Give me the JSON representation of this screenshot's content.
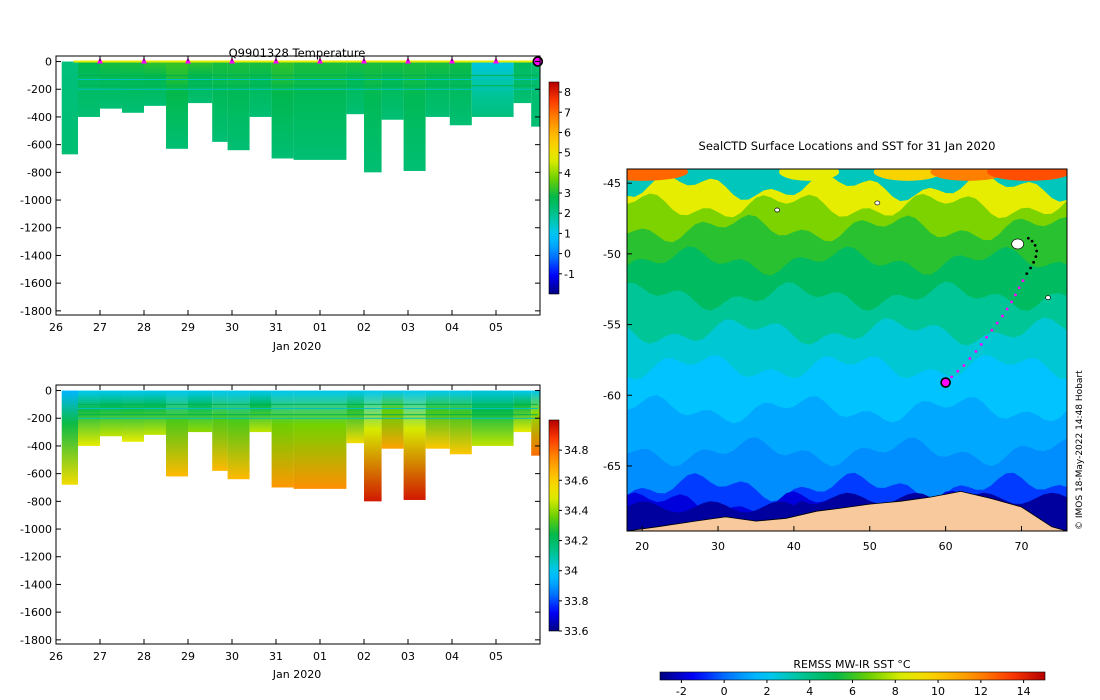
{
  "chart_data": [
    {
      "type": "heatmap",
      "title": "Q9901328  Temperature",
      "xlabel": "Jan 2020",
      "ylabel": "",
      "x_ticks": [
        "26",
        "27",
        "28",
        "29",
        "30",
        "31",
        "01",
        "02",
        "03",
        "04",
        "05"
      ],
      "y_ticks": [
        "0",
        "-200",
        "-400",
        "-600",
        "-800",
        "-1000",
        "-1200",
        "-1400",
        "-1600",
        "-1800"
      ],
      "ylim": [
        -1830,
        40
      ],
      "colorbar": {
        "min": -2,
        "max": 8.5,
        "ticks": [
          "-1",
          "0",
          "1",
          "2",
          "3",
          "4",
          "5",
          "6",
          "7",
          "8"
        ]
      },
      "surface_marker_positions_days": [
        1,
        2,
        3,
        4,
        5,
        6,
        7,
        8,
        9,
        10,
        10.95
      ],
      "profiles": [
        {
          "x0": 0.13,
          "x1": 0.5,
          "bottom": -670,
          "surface": 2.2,
          "deep": 2.3
        },
        {
          "x0": 0.5,
          "x1": 1.0,
          "bottom": -400,
          "surface": 2.8,
          "deep": 2.3
        },
        {
          "x0": 1.0,
          "x1": 1.5,
          "bottom": -340,
          "surface": 3.0,
          "deep": 2.3
        },
        {
          "x0": 1.5,
          "x1": 2.0,
          "bottom": -370,
          "surface": 3.0,
          "deep": 2.3
        },
        {
          "x0": 2.0,
          "x1": 2.5,
          "bottom": -320,
          "surface": 3.2,
          "deep": 2.3
        },
        {
          "x0": 2.5,
          "x1": 3.0,
          "bottom": -630,
          "surface": 3.3,
          "deep": 2.3
        },
        {
          "x0": 3.0,
          "x1": 3.55,
          "bottom": -300,
          "surface": 3.2,
          "deep": 2.3
        },
        {
          "x0": 3.55,
          "x1": 3.9,
          "bottom": -580,
          "surface": 3.0,
          "deep": 2.3
        },
        {
          "x0": 3.9,
          "x1": 4.4,
          "bottom": -640,
          "surface": 3.0,
          "deep": 2.3
        },
        {
          "x0": 4.4,
          "x1": 4.9,
          "bottom": -400,
          "surface": 3.0,
          "deep": 2.3
        },
        {
          "x0": 4.9,
          "x1": 5.4,
          "bottom": -700,
          "surface": 3.2,
          "deep": 2.3
        },
        {
          "x0": 5.4,
          "x1": 6.6,
          "bottom": -710,
          "surface": 3.0,
          "deep": 2.3
        },
        {
          "x0": 6.6,
          "x1": 7.0,
          "bottom": -380,
          "surface": 3.0,
          "deep": 2.3
        },
        {
          "x0": 7.0,
          "x1": 7.4,
          "bottom": -800,
          "surface": 3.0,
          "deep": 2.3
        },
        {
          "x0": 7.4,
          "x1": 7.9,
          "bottom": -420,
          "surface": 3.0,
          "deep": 2.3
        },
        {
          "x0": 7.9,
          "x1": 8.4,
          "bottom": -790,
          "surface": 3.0,
          "deep": 2.3
        },
        {
          "x0": 8.4,
          "x1": 8.95,
          "bottom": -400,
          "surface": 3.0,
          "deep": 2.3
        },
        {
          "x0": 8.95,
          "x1": 9.45,
          "bottom": -460,
          "surface": 2.9,
          "deep": 2.3
        },
        {
          "x0": 9.45,
          "x1": 10.4,
          "bottom": -400,
          "surface": 1.1,
          "deep": 2.2
        },
        {
          "x0": 10.4,
          "x1": 10.8,
          "bottom": -300,
          "surface": 2.6,
          "deep": 2.3
        },
        {
          "x0": 10.8,
          "x1": 11.0,
          "bottom": -470,
          "surface": 2.4,
          "deep": 2.3
        }
      ]
    },
    {
      "type": "heatmap",
      "title": "",
      "xlabel": "Jan 2020",
      "ylabel": "",
      "x_ticks": [
        "26",
        "27",
        "28",
        "29",
        "30",
        "31",
        "01",
        "02",
        "03",
        "04",
        "05"
      ],
      "y_ticks": [
        "0",
        "-200",
        "-400",
        "-600",
        "-800",
        "-1000",
        "-1200",
        "-1400",
        "-1600",
        "-1800"
      ],
      "ylim": [
        -1830,
        40
      ],
      "colorbar": {
        "min": 33.6,
        "max": 35.0,
        "ticks": [
          "33.6",
          "33.8",
          "34",
          "34.2",
          "34.4",
          "34.6",
          "34.8"
        ]
      },
      "profiles": [
        {
          "x0": 0.13,
          "x1": 0.5,
          "bottom": -680,
          "surface": 33.95,
          "deep": 34.55
        },
        {
          "x0": 0.5,
          "x1": 1.0,
          "bottom": -400,
          "surface": 34.0,
          "deep": 34.5
        },
        {
          "x0": 1.0,
          "x1": 1.5,
          "bottom": -330,
          "surface": 34.0,
          "deep": 34.45
        },
        {
          "x0": 1.5,
          "x1": 2.0,
          "bottom": -370,
          "surface": 34.0,
          "deep": 34.5
        },
        {
          "x0": 2.0,
          "x1": 2.5,
          "bottom": -320,
          "surface": 34.0,
          "deep": 34.45
        },
        {
          "x0": 2.5,
          "x1": 3.0,
          "bottom": -620,
          "surface": 34.0,
          "deep": 34.65
        },
        {
          "x0": 3.0,
          "x1": 3.55,
          "bottom": -300,
          "surface": 34.0,
          "deep": 34.4
        },
        {
          "x0": 3.55,
          "x1": 3.9,
          "bottom": -580,
          "surface": 34.0,
          "deep": 34.65
        },
        {
          "x0": 3.9,
          "x1": 4.4,
          "bottom": -640,
          "surface": 34.0,
          "deep": 34.65
        },
        {
          "x0": 4.4,
          "x1": 4.9,
          "bottom": -300,
          "surface": 34.0,
          "deep": 34.45
        },
        {
          "x0": 4.9,
          "x1": 5.4,
          "bottom": -700,
          "surface": 34.0,
          "deep": 34.72
        },
        {
          "x0": 5.4,
          "x1": 6.6,
          "bottom": -710,
          "surface": 34.0,
          "deep": 34.74
        },
        {
          "x0": 6.6,
          "x1": 7.0,
          "bottom": -380,
          "surface": 34.0,
          "deep": 34.55
        },
        {
          "x0": 7.0,
          "x1": 7.4,
          "bottom": -800,
          "surface": 34.0,
          "deep": 34.95
        },
        {
          "x0": 7.4,
          "x1": 7.9,
          "bottom": -420,
          "surface": 34.0,
          "deep": 34.7
        },
        {
          "x0": 7.9,
          "x1": 8.4,
          "bottom": -790,
          "surface": 34.0,
          "deep": 34.95
        },
        {
          "x0": 8.4,
          "x1": 8.95,
          "bottom": -420,
          "surface": 34.0,
          "deep": 34.62
        },
        {
          "x0": 8.95,
          "x1": 9.45,
          "bottom": -460,
          "surface": 34.0,
          "deep": 34.62
        },
        {
          "x0": 9.45,
          "x1": 10.4,
          "bottom": -400,
          "surface": 34.02,
          "deep": 34.45
        },
        {
          "x0": 10.4,
          "x1": 10.8,
          "bottom": -300,
          "surface": 34.0,
          "deep": 34.5
        },
        {
          "x0": 10.8,
          "x1": 11.0,
          "bottom": -470,
          "surface": 34.0,
          "deep": 34.8
        }
      ]
    },
    {
      "type": "heatmap",
      "title": "SealCTD Surface Locations and SST for 31 Jan 2020",
      "xlabel": "",
      "ylabel": "",
      "xlim": [
        18,
        76
      ],
      "ylim": [
        -69.6,
        -44
      ],
      "x_ticks": [
        "20",
        "30",
        "40",
        "50",
        "60",
        "70"
      ],
      "x_tick_values": [
        20,
        30,
        40,
        50,
        60,
        70
      ],
      "y_ticks": [
        "-45",
        "-50",
        "-55",
        "-60",
        "-65"
      ],
      "y_tick_values": [
        -45,
        -50,
        -55,
        -60,
        -65
      ],
      "colorbar": {
        "label": "REMSS MW-IR SST °C",
        "min": -3,
        "max": 15,
        "ticks": [
          "-2",
          "0",
          "2",
          "4",
          "6",
          "8",
          "10",
          "12",
          "14"
        ]
      },
      "credit": "© IMOS 18-May-2022 14:48 Hobart",
      "track": [
        [
          60.0,
          -59.1
        ],
        [
          60.8,
          -58.7
        ],
        [
          61.6,
          -58.3
        ],
        [
          62.4,
          -57.9
        ],
        [
          63.2,
          -57.4
        ],
        [
          64.0,
          -56.9
        ],
        [
          64.7,
          -56.4
        ],
        [
          65.4,
          -55.9
        ],
        [
          66.1,
          -55.4
        ],
        [
          66.8,
          -54.9
        ],
        [
          67.5,
          -54.4
        ],
        [
          68.1,
          -53.9
        ],
        [
          68.7,
          -53.4
        ],
        [
          69.2,
          -52.9
        ],
        [
          69.7,
          -52.4
        ],
        [
          70.2,
          -51.9
        ],
        [
          70.7,
          -51.4
        ],
        [
          71.2,
          -51.0
        ],
        [
          71.6,
          -50.6
        ],
        [
          71.9,
          -50.2
        ],
        [
          72.0,
          -49.8
        ],
        [
          71.8,
          -49.4
        ],
        [
          71.4,
          -49.1
        ],
        [
          70.9,
          -48.9
        ]
      ],
      "track_end": [
        60.0,
        -59.1
      ],
      "islands": [
        [
          69.5,
          -49.3
        ],
        [
          51.0,
          -46.4
        ],
        [
          37.8,
          -46.9
        ],
        [
          73.5,
          -53.1
        ]
      ]
    }
  ]
}
